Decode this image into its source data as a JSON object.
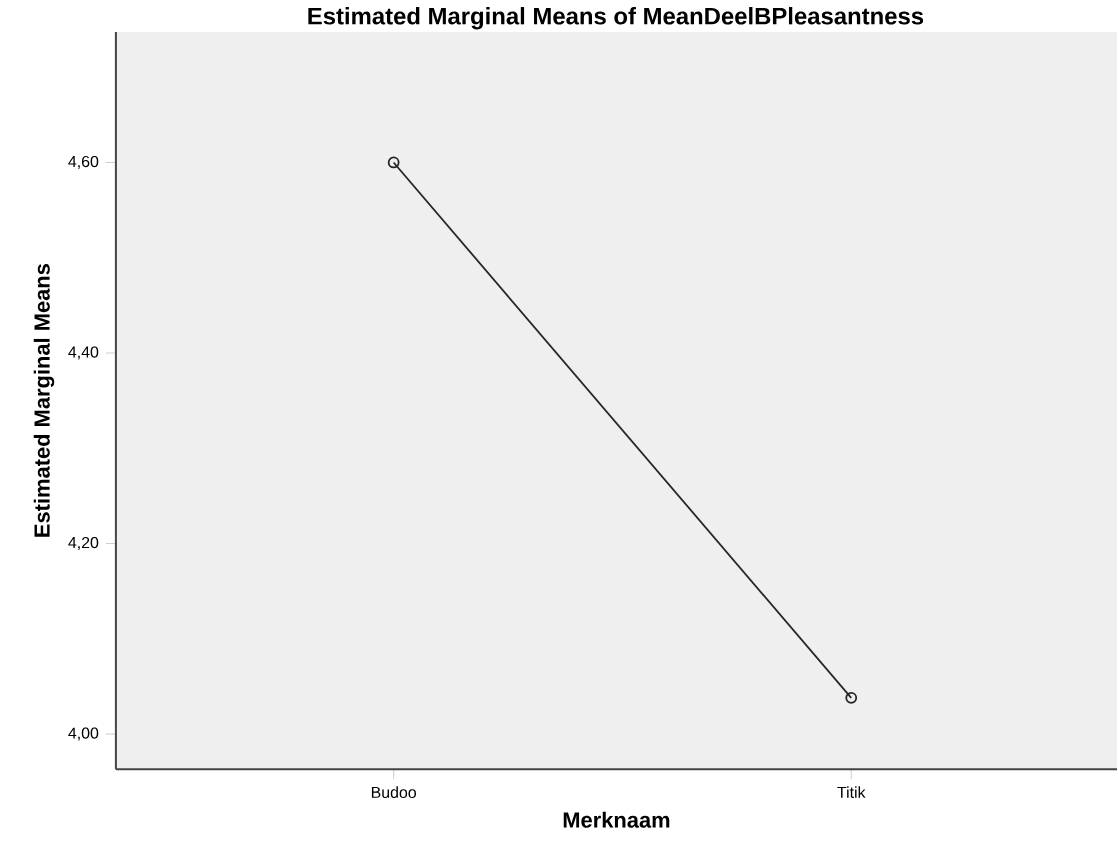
{
  "chart_data": {
    "type": "line",
    "title": "Estimated Marginal Means of MeanDeelBPleasantness",
    "xlabel": "Merknaam",
    "ylabel": "Estimated Marginal Means",
    "categories": [
      "Budoo",
      "Titik"
    ],
    "series": [
      {
        "color": "#262626",
        "values": [
          4.6,
          4.038
        ]
      }
    ],
    "ylim": [
      3.963,
      4.737
    ],
    "yticks": [
      {
        "value": 4.0,
        "label": "4,00"
      },
      {
        "value": 4.2,
        "label": "4,20"
      },
      {
        "value": 4.4,
        "label": "4,40"
      },
      {
        "value": 4.6,
        "label": "4,60"
      }
    ],
    "marker": "circle",
    "line_style": "solid"
  }
}
